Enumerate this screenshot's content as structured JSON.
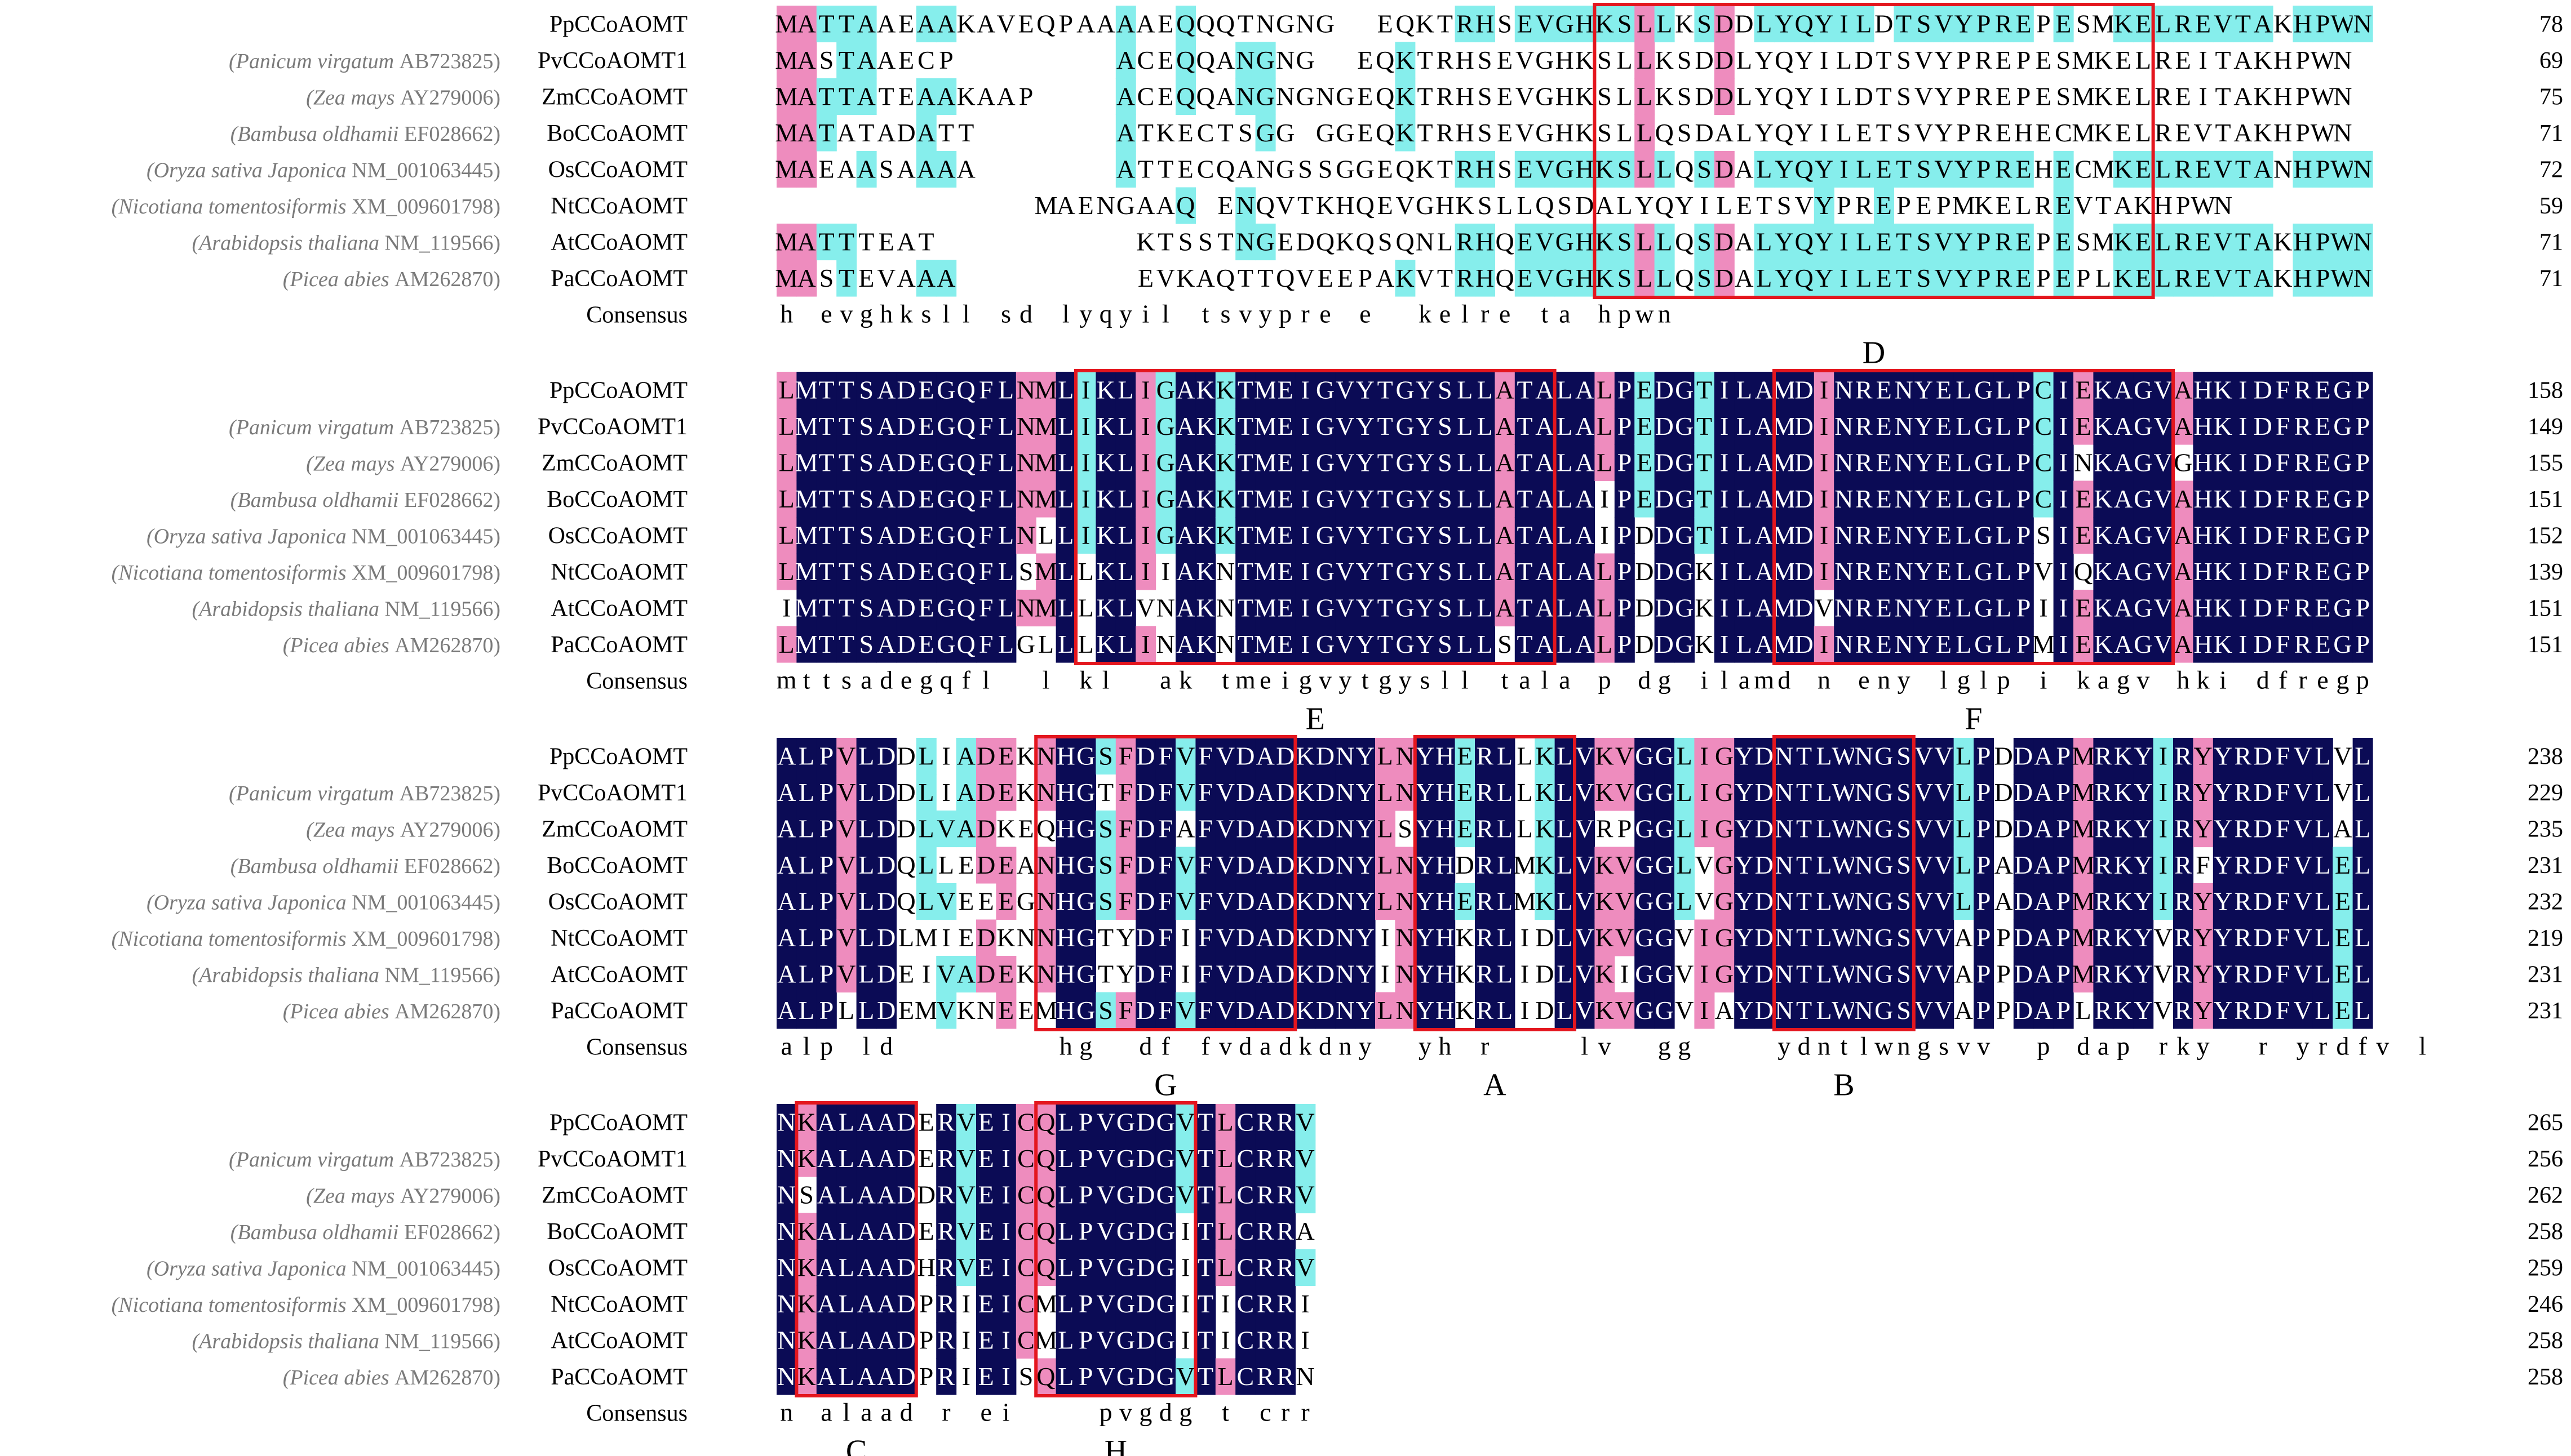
{
  "colors": {
    "identical": "#0b0b55",
    "high": "#ee8cbe",
    "medium": "#86eeec",
    "motif_box": "#e4161e"
  },
  "sequences": [
    {
      "species": "",
      "accession": "",
      "name": "PpCCoAOMT"
    },
    {
      "species": "Panicum virgatum",
      "accession": "AB723825",
      "name": "PvCCoAOMT1"
    },
    {
      "species": "Zea mays",
      "accession": "AY279006",
      "name": "ZmCCoAOMT"
    },
    {
      "species": "Bambusa oldhamii",
      "accession": "EF028662",
      "name": "BoCCoAOMT"
    },
    {
      "species": "Oryza sativa Japonica",
      "accession": "NM_001063445",
      "name": "OsCCoAOMT"
    },
    {
      "species": "Nicotiana tomentosiformis",
      "accession": "XM_009601798",
      "name": "NtCCoAOMT"
    },
    {
      "species": "Arabidopsis thaliana",
      "accession": "NM_119566",
      "name": "AtCCoAOMT"
    },
    {
      "species": "Picea abies",
      "accession": "AM262870",
      "name": "PaCCoAOMT"
    }
  ],
  "consensus_label": "Consensus",
  "blocks": [
    {
      "rows": [
        "MATTAAEAAKAVEQPAAAAEQQQTNGNG..EQKTRHSEVGHKSLLKSDDLYQYILDTSVYPREPESMKELREVTAKHPWN",
        "MASTAAECP........ACEQQANGNG..EQKTRHSEVGHKSLLKSDDLYQYILDTSVYPREPESMKELREITAKHPWN",
        "MATTATEAAKAAP....ACEQQANGNGNGEQKTRHSEVGHKSLLKSDDLYQYILDTSVYPREPESMKELREITAKHPWN",
        "MATATADATT.......ATKECTSGG.GGEQKTRHSEVGHKSLLQSDALYQYILETSVYPREHECMKELREVTAKHPWN",
        "MAEAASAAAA.......ATTECQANGSSGGEQKTRHSEVGHKSLLQSDALYQYILETSVYPREHECMKELREVTANHPWN",
        ".............MAENGAAQ.ENQVTKHQEVGHKSLLQSDALYQYILETSVYPREPEPMKELREVTAKHPWN",
        "MATTTEAT..........KTSSTNGEDQKQSQNLRHQEVGHKSLLQSDALYQYILETSVYPREPESMKELREVTAKHPWN",
        "MASTEVAAA.........EVKAQTTQVEEPAKVTRHQEVGHKSLLQSDALYQYILETSVYPREPEPLKELREVTAKHPWN"
      ],
      "ends": [
        78,
        69,
        75,
        71,
        72,
        59,
        71,
        71
      ],
      "consensus": "h evghksll sd lyqyil tsvypre e  kelre ta hpwn"
    },
    {
      "rows": [
        "LMTTSADEGQFLNMLIKLIGAKKTMEIGVYTGYSLLATALALPEDGTILAMDINRENYELGLPCIEKAGVAHKIDFREGP",
        "LMTTSADEGQFLNMLIKLIGAKKTMEIGVYTGYSLLATALALPEDGTILAMDINRENYELGLPCIEKAGVAHKIDFREGP",
        "LMTTSADEGQFLNMLIKLIGAKKTMEIGVYTGYSLLATALALPEDGTILAMDINRENYELGLPCINKAGVGHKIDFREGP",
        "LMTTSADEGQFLNMLIKLIGAKKTMEIGVYTGYSLLATALAIPEDGTILAMDINRENYELGLPCIEKAGVAHKIDFREGP",
        "LMTTSADEGQFLNLLIKLIGAKKTMEIGVYTGYSLLATALAIPDDGTILAMDINRENYELGLPSIEKAGVAHKIDFREGP",
        "LMTTSADEGQFLSMLLKLIIAKNTMEIGVYTGYSLLATALALPDDGKILAMDINRENYELGLPVIQKAGVAHKIDFREGP",
        "IMTTSADEGQFLNMLLKLVNAKNTMEIGVYTGYSLLATALALPDDGKILAMDVNRENYELGLPIIEKAGVAHKIDFREGP",
        "LMTTSADEGQFLGLLLKLINAKNTMEIGVYTGYSLLSTALALPDDGKILAMDINRENYELGLPMIEKAGVAHKIDFREGP"
      ],
      "ends": [
        158,
        149,
        155,
        151,
        152,
        139,
        151,
        151
      ],
      "consensus": "mttsadegqfl  l kl  ak tmeigvytgysll tala p dg ilamd n eny lglp i kagv hki dfregp"
    },
    {
      "rows": [
        "ALPVLDDLIADEKNHGSFDFVFVDADKDNYLNYHERLLKLVKVGGLIGYDNTLWNGSVVLPDDAPMRKYIRYYRDFVLVL",
        "ALPVLDDLIADEKNHGTFDFVFVDADKDNYLNYHERLLKLVKVGGLIGYDNTLWNGSVVLPDDAPMRKYIRYYRDFVLVL",
        "ALPVLDDLVADKEQHGSFDFAFVDADKDNYLSYHERLLKLVRPGGLIGYDNTLWNGSVVLPDDAPMRKYIRYYRDFVLAL",
        "ALPVLDQLLEDEANHGSFDFVFVDADKDNYLNYHDRLMKLVKVGGLVGYDNTLWNGSVVLPADAPMRKYIRFYRDFVLEL",
        "ALPVLDQLVEEEGNHGSFDFVFVDADKDNYLNYHERLMKLVKVGGLVGYDNTLWNGSVVLPADAPMRKYIRYYRDFVLEL",
        "ALPVLDLMIEDKNNHGTYDFIFVDADKDNYINYHKRLIDLVKVGGVIGYDNTLWNGSVVAPPDAPMRKYVRYYRDFVLEL",
        "ALPVLDEIVADEKNHGTYDFIFVDADKDNYINYHKRLIDLVKIGGVIGYDNTLWNGSVVAPPDAPMRKYVRYYRDFVLEL",
        "ALPLLDEMVKNEEMHGSFDFVFVDADKDNYLNYHKRLIDLVKVGGVIAYDNTLWNGSVVAPPDAPLRKYVRYYRDFVLEL"
      ],
      "ends": [
        238,
        229,
        235,
        231,
        232,
        219,
        231,
        231
      ],
      "consensus": "alp ld        hg  df fvdadkdny  yh r    lv  gg    ydntlwngsvv  p dap rky  r yrdfv l"
    },
    {
      "rows": [
        "NKALAADERVEICQLPVGDGVTLCRRV",
        "NKALAADERVEICQLPVGDGVTLCRRV",
        "NSALAADDRVEICQLPVGDGVTLCRRV",
        "NKALAADERVEICQLPVGDGITLCRRA",
        "NKALAADHRVEICQLPVGDGITLCRRV",
        "NKALAADPRIEICMLPVGDGITICRRI",
        "NKALAADPRIEICMLPVGDGITICRRI",
        "NKALAADPRIEISQLPVGDGVTLCRRN"
      ],
      "ends": [
        265,
        256,
        262,
        258,
        259,
        246,
        258,
        258
      ],
      "consensus": "n alaad r ei    pvgdg t crr"
    }
  ],
  "motifs": [
    {
      "label": "D",
      "block": 0
    },
    {
      "label": "E",
      "block": 1
    },
    {
      "label": "F",
      "block": 1
    },
    {
      "label": "G",
      "block": 2
    },
    {
      "label": "A",
      "block": 2
    },
    {
      "label": "B",
      "block": 2
    },
    {
      "label": "C",
      "block": 3
    },
    {
      "label": "H",
      "block": 3
    }
  ]
}
